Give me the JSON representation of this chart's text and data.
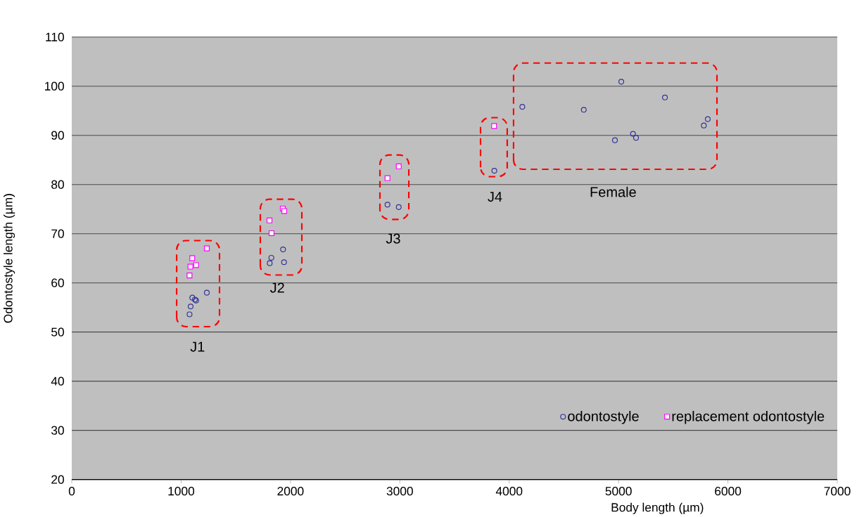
{
  "chart_data": {
    "type": "scatter",
    "xlabel": "Body length (µm)",
    "ylabel": "Odontostyle length (µm)",
    "xlim": [
      0,
      7000
    ],
    "ylim": [
      20,
      110
    ],
    "xticks": [
      0,
      1000,
      2000,
      3000,
      4000,
      5000,
      6000,
      7000
    ],
    "yticks": [
      20,
      30,
      40,
      50,
      60,
      70,
      80,
      90,
      100,
      110
    ],
    "grid": "y",
    "legend": "bottom right",
    "series": [
      {
        "name": "odontostyle",
        "color": "#333399",
        "marker": "circle",
        "x": [
          1077,
          1087,
          1102,
          1126,
          1137,
          1235,
          1810,
          1825,
          1932,
          1941,
          2887,
          2990,
          3864,
          4120,
          4682,
          5025,
          5424,
          4967,
          5132,
          5160,
          5780,
          5816
        ],
        "values": [
          53.6,
          55.2,
          57.0,
          56.6,
          56.4,
          58.0,
          64.0,
          65.1,
          66.8,
          64.2,
          75.9,
          75.4,
          82.8,
          95.8,
          95.2,
          100.9,
          97.7,
          89.0,
          90.3,
          89.5,
          92.0,
          93.3
        ]
      },
      {
        "name": "replacement odontostyle",
        "color": "#ff00ff",
        "marker": "square",
        "x": [
          1077,
          1085,
          1102,
          1137,
          1235,
          1808,
          1827,
          1930,
          1943,
          2887,
          2990,
          3862
        ],
        "values": [
          61.5,
          63.3,
          65.0,
          63.6,
          67.0,
          72.7,
          70.1,
          75.1,
          74.6,
          81.3,
          83.7,
          91.9
        ]
      }
    ],
    "annotations": [
      "J1",
      "J2",
      "J3",
      "J4",
      "Female"
    ]
  }
}
